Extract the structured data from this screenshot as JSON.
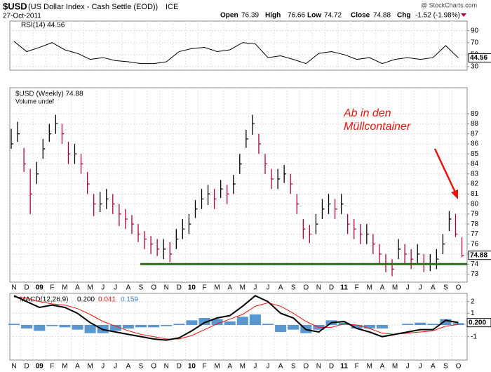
{
  "chart_data": {
    "type": "ohlc",
    "symbol_title": "$USD",
    "title": "(US Dollar Index - Cash Settle (EOD))",
    "exchange": "ICE",
    "date": "27-Oct-2011",
    "quote": [
      "Open",
      "76.39",
      "High",
      "76.66",
      "Low",
      "74.72",
      "Close",
      "74.88",
      "Chg",
      "-1.52 (-1.98%)"
    ],
    "watermark": "@ StockCharts.com",
    "price_legend": "$USD (Weekly) 74.88",
    "volume_legend": "Volume undef",
    "annotation": "Ab in den Müllcontainer",
    "annotation_color": "#e8150c",
    "support_level": 74,
    "support_color": "#2e6b1e",
    "last_price_label": "74.88",
    "categories": [
      "N",
      "D",
      "09",
      "F",
      "M",
      "A",
      "M",
      "J",
      "J",
      "A",
      "S",
      "O",
      "N",
      "D",
      "10",
      "F",
      "M",
      "A",
      "M",
      "J",
      "J",
      "A",
      "S",
      "O",
      "N",
      "D",
      "11",
      "F",
      "M",
      "A",
      "M",
      "J",
      "J",
      "A",
      "S",
      "O"
    ],
    "up_color": "#000000",
    "down_color": "#b0003a",
    "high": [
      87.5,
      88.2,
      85.6,
      83.5,
      84.2,
      86.5,
      88.0,
      88.9,
      88.0,
      86.2,
      86.0,
      85.0,
      83.2,
      81.0,
      81.2,
      81.5,
      81.0,
      80.0,
      79.5,
      78.9,
      78.0,
      77.3,
      76.8,
      76.5,
      76.5,
      76.2,
      77.5,
      78.5,
      79.0,
      80.4,
      81.5,
      81.9,
      81.5,
      82.4,
      81.9,
      82.9,
      85.0,
      87.4,
      88.9,
      87.0,
      85.0,
      83.5,
      83.5,
      83.9,
      83.0,
      81.0,
      78.5,
      77.9,
      79.0,
      80.5,
      81.0,
      80.5,
      81.0,
      79.0,
      78.5,
      78.0,
      78.0,
      77.0,
      76.0,
      75.0,
      74.5,
      76.5,
      76.0,
      75.5,
      76.0,
      75.0,
      75.0,
      75.5,
      77.0,
      79.3,
      79.0,
      76.7
    ],
    "low": [
      85.5,
      86.2,
      83.2,
      79.0,
      82.0,
      84.5,
      86.2,
      87.0,
      86.0,
      84.0,
      84.0,
      83.0,
      81.0,
      78.8,
      79.2,
      79.5,
      79.0,
      77.8,
      77.5,
      77.0,
      76.2,
      75.5,
      75.0,
      74.8,
      74.5,
      74.2,
      75.5,
      76.5,
      77.0,
      78.6,
      79.5,
      79.9,
      79.5,
      80.6,
      80.0,
      81.0,
      83.0,
      85.6,
      86.9,
      85.0,
      83.0,
      81.5,
      81.5,
      82.1,
      81.0,
      79.0,
      76.5,
      76.1,
      77.0,
      78.5,
      79.0,
      78.5,
      79.0,
      77.0,
      76.5,
      76.0,
      76.0,
      75.0,
      74.0,
      73.2,
      72.8,
      74.5,
      74.0,
      73.5,
      74.0,
      73.2,
      73.3,
      73.5,
      75.0,
      77.3,
      76.7,
      74.7
    ],
    "close": [
      86,
      87,
      84,
      81,
      83,
      85.5,
      87,
      88,
      87,
      85,
      85,
      84,
      82,
      80,
      80,
      80.5,
      80,
      79,
      78.5,
      78,
      77,
      76.5,
      76,
      75.5,
      75.5,
      75,
      76.5,
      77.5,
      78,
      79.5,
      80.5,
      81,
      80.5,
      81.5,
      81,
      82,
      84,
      86.5,
      88,
      86,
      84,
      82.5,
      82.5,
      83,
      82,
      80,
      77.5,
      77,
      78,
      79.5,
      80,
      79.5,
      80,
      78,
      77.5,
      77,
      77,
      76,
      75,
      74,
      73.5,
      75.5,
      75,
      74.5,
      75,
      74,
      74,
      74.5,
      76,
      78.5,
      77,
      74.88
    ],
    "ylim": [
      72.2,
      91.6
    ],
    "yticks": [
      73,
      74,
      75,
      76,
      77,
      78,
      79,
      80,
      81,
      82,
      83,
      84,
      85,
      86,
      87,
      88,
      89
    ],
    "rsi_label": "RSI(14) 44.56",
    "rsi_last_label": "44.56",
    "rsi": [
      72,
      55,
      62,
      70,
      58,
      52,
      42,
      45,
      40,
      38,
      35,
      35,
      38,
      55,
      60,
      62,
      55,
      58,
      70,
      68,
      45,
      48,
      42,
      35,
      52,
      55,
      50,
      42,
      45,
      35,
      42,
      45,
      42,
      45,
      65,
      44.56
    ],
    "rsi_ylim": [
      24,
      106
    ],
    "rsi_yticks": [
      30,
      50,
      70,
      90
    ],
    "rsi_color": "#000000",
    "macd_label": "MACD(12,26,9)",
    "macd_readout": [
      "0.200",
      "0.041",
      "0.159"
    ],
    "macd_last_label": "0.200",
    "series": [
      {
        "name": "MACD",
        "color": "#000000",
        "values": [
          2.5,
          2.0,
          1.5,
          1.7,
          1.5,
          1.0,
          0.2,
          -0.4,
          -0.6,
          -0.8,
          -1.0,
          -1.2,
          -1.3,
          -1.1,
          -0.5,
          0.2,
          0.6,
          0.8,
          1.6,
          2.5,
          2.0,
          1.0,
          0.6,
          -0.4,
          -0.6,
          0.2,
          0.3,
          -0.3,
          -0.6,
          -1.0,
          -0.8,
          -0.6,
          -0.4,
          -0.4,
          0.4,
          0.2
        ]
      },
      {
        "name": "Signal",
        "color": "#e8150c",
        "values": [
          2.4,
          2.3,
          2.0,
          1.8,
          1.7,
          1.4,
          0.9,
          0.3,
          -0.1,
          -0.5,
          -0.8,
          -1.0,
          -1.2,
          -1.2,
          -0.9,
          -0.4,
          0.1,
          0.5,
          0.9,
          1.6,
          1.9,
          1.6,
          1.0,
          0.3,
          -0.2,
          -0.2,
          0.1,
          0.0,
          -0.3,
          -0.7,
          -0.8,
          -0.7,
          -0.6,
          -0.5,
          -0.1,
          0.041
        ]
      },
      {
        "name": "Histogram",
        "color": "#3d85c6",
        "values": [
          0.1,
          -0.3,
          -0.5,
          -0.1,
          -0.2,
          -0.4,
          -0.7,
          -0.7,
          -0.5,
          -0.3,
          -0.2,
          -0.2,
          -0.1,
          0.1,
          0.4,
          0.6,
          0.5,
          0.3,
          0.7,
          0.9,
          0.1,
          -0.6,
          -0.4,
          -0.7,
          -0.4,
          0.4,
          0.2,
          -0.3,
          -0.3,
          -0.3,
          0,
          0.1,
          0.2,
          0.1,
          0.5,
          0.159
        ]
      }
    ],
    "macd_ylim": [
      -3.0,
      2.7
    ],
    "macd_yticks": [
      -1,
      0,
      1,
      2
    ],
    "grid": true
  }
}
